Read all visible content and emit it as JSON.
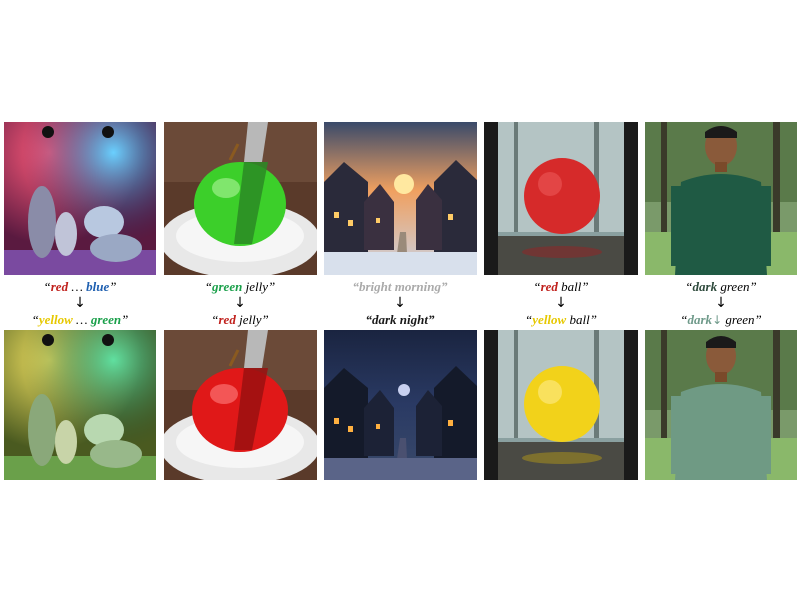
{
  "colors": {
    "red": "#c0201c",
    "blue": "#1e5fb0",
    "yellow": "#e6c800",
    "green": "#1aa04a",
    "gray": "#aaaaaa",
    "dark_green": "#2e4a3c",
    "light_green": "#6f9a8a",
    "black": "#1a1a1a"
  },
  "arrow": "↓",
  "columns": [
    {
      "top_prompt": {
        "open": "“",
        "w1": "red",
        "mid": " … ",
        "w2": "blue",
        "close": "”"
      },
      "bottom_prompt": {
        "open": "“",
        "w1": "yellow",
        "mid": " … ",
        "w2": "green",
        "close": "”"
      }
    },
    {
      "top_prompt": {
        "open": "“",
        "w1": "green",
        "rest": " jelly",
        "close": "”"
      },
      "bottom_prompt": {
        "open": "“",
        "w1": "red",
        "rest": " jelly",
        "close": "”"
      }
    },
    {
      "top_prompt": {
        "text": "“bright morning”"
      },
      "bottom_prompt": {
        "text": "“dark night”"
      }
    },
    {
      "top_prompt": {
        "open": "“",
        "w1": "red",
        "rest": " ball",
        "close": "”"
      },
      "bottom_prompt": {
        "open": "“",
        "w1": "yellow",
        "rest": " ball",
        "close": "”"
      }
    },
    {
      "top_prompt": {
        "open": "“",
        "w1": "dark",
        "rest": " green",
        "close": "”"
      },
      "bottom_prompt": {
        "open": "“",
        "w1": "dark",
        "strike": "↓",
        "rest": " green",
        "close": "”"
      }
    }
  ]
}
